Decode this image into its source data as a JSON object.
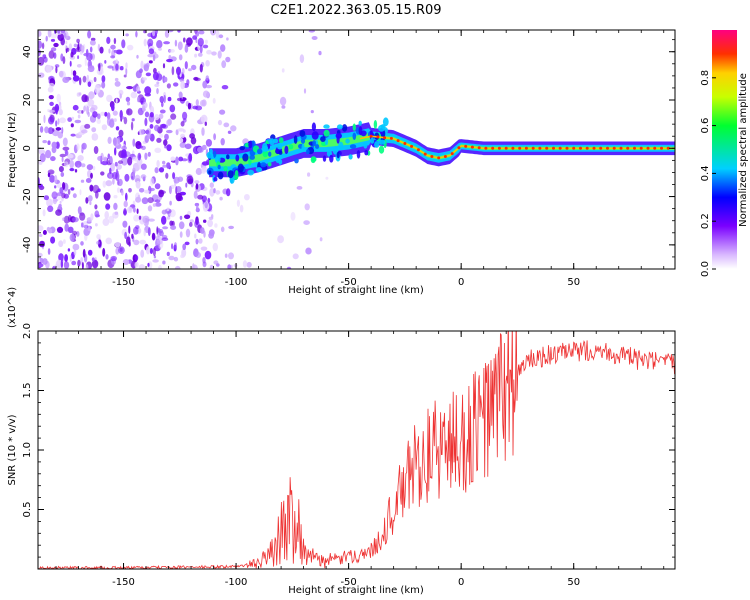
{
  "title": "C2E1.2022.363.05.15.R09",
  "chart_data": [
    {
      "type": "heatmap",
      "xlabel": "Height of straight line (km)",
      "ylabel": "Frequency (Hz)",
      "xlim": [
        -188,
        95
      ],
      "ylim": [
        -50,
        49
      ],
      "xticks": [
        -150,
        -100,
        -50,
        0,
        50
      ],
      "yticks": [
        -40,
        -20,
        0,
        20,
        40
      ],
      "colorbar": {
        "label": "Normalized spectral amplitude",
        "range": [
          0.0,
          1.0
        ],
        "ticks": [
          "0.0",
          "0.2",
          "0.4",
          "0.6",
          "0.8"
        ]
      },
      "ridge_center_hz": {
        "x": [
          -110,
          -100,
          -90,
          -80,
          -70,
          -60,
          -50,
          -40,
          -30,
          -20,
          -15,
          -10,
          -5,
          0,
          10,
          20,
          40,
          60,
          80,
          95
        ],
        "y": [
          -6,
          -6,
          -4,
          -1,
          2,
          2,
          3,
          5,
          4,
          0,
          -3,
          -4,
          -3,
          1,
          0,
          0,
          0,
          0,
          0,
          0
        ]
      }
    },
    {
      "type": "line",
      "xlabel": "Height of straight line (km)",
      "ylabel": "SNR (10 * v/v)",
      "y_multiplier": "(x10^4)",
      "xlim": [
        -188,
        95
      ],
      "ylim": [
        0,
        2.0
      ],
      "xticks": [
        -150,
        -100,
        -50,
        0,
        50
      ],
      "yticks": [
        0.5,
        1.0,
        1.5,
        2.0
      ],
      "color": "#ee3333",
      "x": [
        -188,
        -150,
        -100,
        -90,
        -85,
        -80,
        -76,
        -72,
        -70,
        -65,
        -60,
        -55,
        -50,
        -45,
        -40,
        -35,
        -30,
        -25,
        -20,
        -15,
        -10,
        -5,
        0,
        5,
        10,
        15,
        20,
        25,
        30,
        40,
        50,
        60,
        70,
        80,
        95
      ],
      "y": [
        0.01,
        0.01,
        0.02,
        0.05,
        0.12,
        0.3,
        0.45,
        0.38,
        0.15,
        0.08,
        0.07,
        0.08,
        0.1,
        0.12,
        0.15,
        0.3,
        0.5,
        0.7,
        0.9,
        0.95,
        1.0,
        1.05,
        1.05,
        1.15,
        1.25,
        1.35,
        1.55,
        1.65,
        1.75,
        1.8,
        1.82,
        1.85,
        1.8,
        1.75,
        1.72
      ]
    }
  ]
}
